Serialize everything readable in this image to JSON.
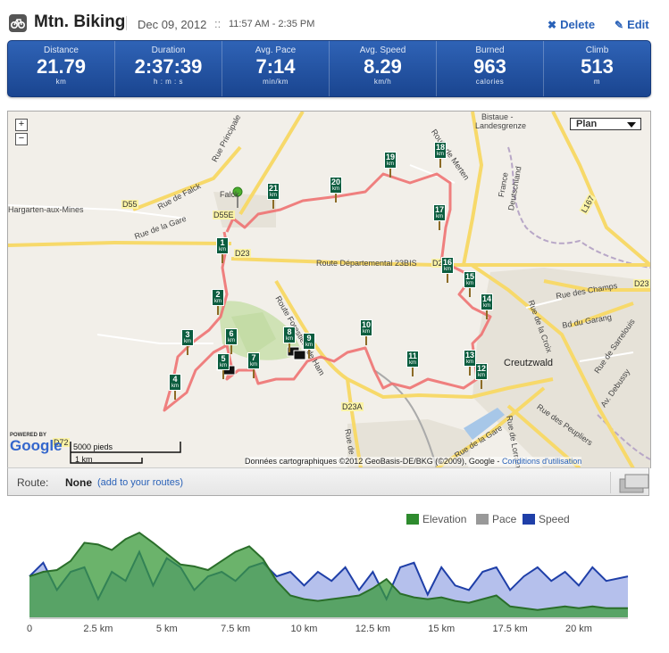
{
  "header": {
    "title": "Mtn. Biking",
    "date": "Dec 09, 2012",
    "date_sep": "::",
    "time_range": "11:57 AM - 2:35 PM",
    "delete_label": "Delete",
    "edit_label": "Edit"
  },
  "stats": [
    {
      "label": "Distance",
      "value": "21.79",
      "unit": "km"
    },
    {
      "label": "Duration",
      "value": "2:37:39",
      "unit": "h : m : s"
    },
    {
      "label": "Avg. Pace",
      "value": "7:14",
      "unit": "min/km"
    },
    {
      "label": "Avg. Speed",
      "value": "8.29",
      "unit": "km/h"
    },
    {
      "label": "Burned",
      "value": "963",
      "unit": "calories"
    },
    {
      "label": "Climb",
      "value": "513",
      "unit": "m"
    }
  ],
  "map": {
    "map_type": "Plan",
    "zoom_in": "+",
    "zoom_out": "−",
    "labels": {
      "bistaue": "Bistaue -",
      "landesgrenze": "Landesgrenze",
      "hargarten": "Hargarten-aux-Mines",
      "falck": "Falck",
      "creutzwald": "Creutzwald",
      "france": "France",
      "deutschland": "Deutschland",
      "rue_falck": "Rue de Falck",
      "rue_principale": "Rue Principale",
      "rue_gare": "Rue de la Gare",
      "route_dep": "Route Départemental 23BIS",
      "route_merten": "Route de Merten",
      "rue_champs": "Rue des Champs",
      "bd_garang": "Bd du Garang",
      "rue_croix": "Rue de la Croix",
      "rue_peupliers": "Rue des Peupliers",
      "rue_gare2": "Rue de la Gare",
      "rue_sarrelouis": "Rue de Sarrelouis",
      "av_debussy": "Av. Debussy",
      "rue_lorraine": "Rue de Lorraine",
      "route_ham": "Route Forestière de Ham",
      "rue_de": "Rue de"
    },
    "roads": [
      "D55",
      "D55E",
      "D23",
      "D23",
      "D23",
      "D23A",
      "L167",
      "D72"
    ],
    "km_markers": [
      "1",
      "2",
      "3",
      "4",
      "5",
      "6",
      "7",
      "8",
      "9",
      "10",
      "11",
      "12",
      "13",
      "14",
      "15",
      "16",
      "17",
      "18",
      "19",
      "20",
      "21"
    ],
    "km_unit": "km",
    "powered_by": "POWERED BY",
    "google": "Google",
    "scale_top": "5000 pieds",
    "scale_bottom": "1 km",
    "copyright": "Données cartographiques ©2012 GeoBasis-DE/BKG (©2009), Google -",
    "terms": "Conditions d'utilisation"
  },
  "route": {
    "label": "Route:",
    "value": "None",
    "link": "(add to your routes)"
  },
  "chart_data": {
    "type": "area",
    "series": [
      {
        "name": "Elevation",
        "color": "#3a9a3a",
        "x": [
          0,
          0.5,
          1,
          1.5,
          2,
          2.5,
          3,
          3.5,
          4,
          4.5,
          5,
          5.5,
          6,
          6.5,
          7,
          7.5,
          8,
          8.5,
          9,
          9.5,
          10,
          10.5,
          11,
          11.5,
          12,
          12.5,
          13,
          13.5,
          14,
          14.5,
          15,
          15.5,
          16,
          16.5,
          17,
          17.5,
          18,
          18.5,
          19,
          19.5,
          20,
          20.5,
          21,
          21.79
        ],
        "values": [
          0.45,
          0.5,
          0.52,
          0.62,
          0.82,
          0.8,
          0.74,
          0.86,
          0.93,
          0.82,
          0.7,
          0.58,
          0.56,
          0.52,
          0.62,
          0.72,
          0.78,
          0.64,
          0.4,
          0.24,
          0.2,
          0.18,
          0.2,
          0.22,
          0.24,
          0.32,
          0.42,
          0.26,
          0.22,
          0.2,
          0.22,
          0.18,
          0.16,
          0.2,
          0.24,
          0.12,
          0.1,
          0.08,
          0.1,
          0.12,
          0.1,
          0.12,
          0.1,
          0.1
        ]
      },
      {
        "name": "Pace",
        "color": "#999999",
        "x": [],
        "values": []
      },
      {
        "name": "Speed",
        "color": "#1f3fa8",
        "x": [
          0,
          0.5,
          1,
          1.5,
          2,
          2.5,
          3,
          3.5,
          4,
          4.5,
          5,
          5.5,
          6,
          6.5,
          7,
          7.5,
          8,
          8.5,
          9,
          9.5,
          10,
          10.5,
          11,
          11.5,
          12,
          12.5,
          13,
          13.5,
          14,
          14.5,
          15,
          15.5,
          16,
          16.5,
          17,
          17.5,
          18,
          18.5,
          19,
          19.5,
          20,
          20.5,
          21,
          21.79
        ],
        "values": [
          0.45,
          0.6,
          0.3,
          0.5,
          0.55,
          0.2,
          0.5,
          0.4,
          0.72,
          0.35,
          0.65,
          0.55,
          0.3,
          0.45,
          0.5,
          0.4,
          0.55,
          0.6,
          0.45,
          0.5,
          0.35,
          0.5,
          0.4,
          0.55,
          0.3,
          0.5,
          0.2,
          0.55,
          0.6,
          0.25,
          0.55,
          0.35,
          0.3,
          0.5,
          0.55,
          0.3,
          0.45,
          0.55,
          0.4,
          0.5,
          0.35,
          0.55,
          0.4,
          0.45
        ]
      }
    ],
    "x_ticks": [
      "0",
      "2.5 km",
      "5 km",
      "7.5 km",
      "10 km",
      "12.5 km",
      "15 km",
      "17.5 km",
      "20 km"
    ],
    "x_tick_values": [
      0,
      2.5,
      5,
      7.5,
      10,
      12.5,
      15,
      17.5,
      20
    ],
    "xlim": [
      0,
      21.79
    ],
    "legend": [
      "Elevation",
      "Pace",
      "Speed"
    ]
  }
}
